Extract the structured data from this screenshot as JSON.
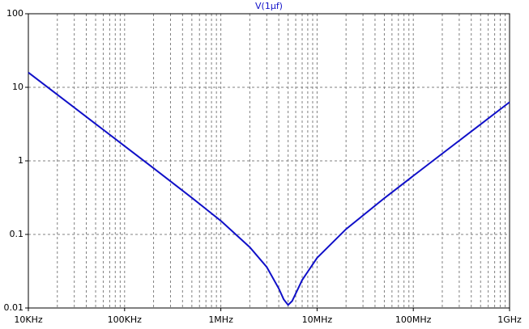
{
  "chart_data": {
    "type": "line",
    "title": "V(1µf)",
    "x": [
      10000,
      20000,
      50000,
      100000,
      200000,
      500000,
      1000000,
      2000000,
      3000000,
      4000000,
      4500000,
      5000000,
      5500000,
      6000000,
      7000000,
      10000000,
      20000000,
      50000000,
      100000000,
      200000000,
      500000000,
      1000000000
    ],
    "series": [
      {
        "name": "V(1µf)",
        "color": "#1010c8",
        "values": [
          15.9,
          7.96,
          3.18,
          1.59,
          0.795,
          0.315,
          0.153,
          0.067,
          0.036,
          0.0184,
          0.0131,
          0.011,
          0.0124,
          0.0157,
          0.024,
          0.048,
          0.118,
          0.311,
          0.626,
          1.256,
          3.14,
          6.28
        ]
      }
    ],
    "xlim": [
      10000,
      1000000000
    ],
    "ylim": [
      0.01,
      100
    ],
    "xticks": [
      {
        "value": 10000,
        "label": "10KHz"
      },
      {
        "value": 100000,
        "label": "100KHz"
      },
      {
        "value": 1000000,
        "label": "1MHz"
      },
      {
        "value": 10000000,
        "label": "10MHz"
      },
      {
        "value": 100000000,
        "label": "100MHz"
      },
      {
        "value": 1000000000,
        "label": "1GHz"
      }
    ],
    "yticks": [
      0.01,
      0.1,
      1,
      10,
      100
    ],
    "xscale": "log",
    "yscale": "log",
    "grid": true
  }
}
